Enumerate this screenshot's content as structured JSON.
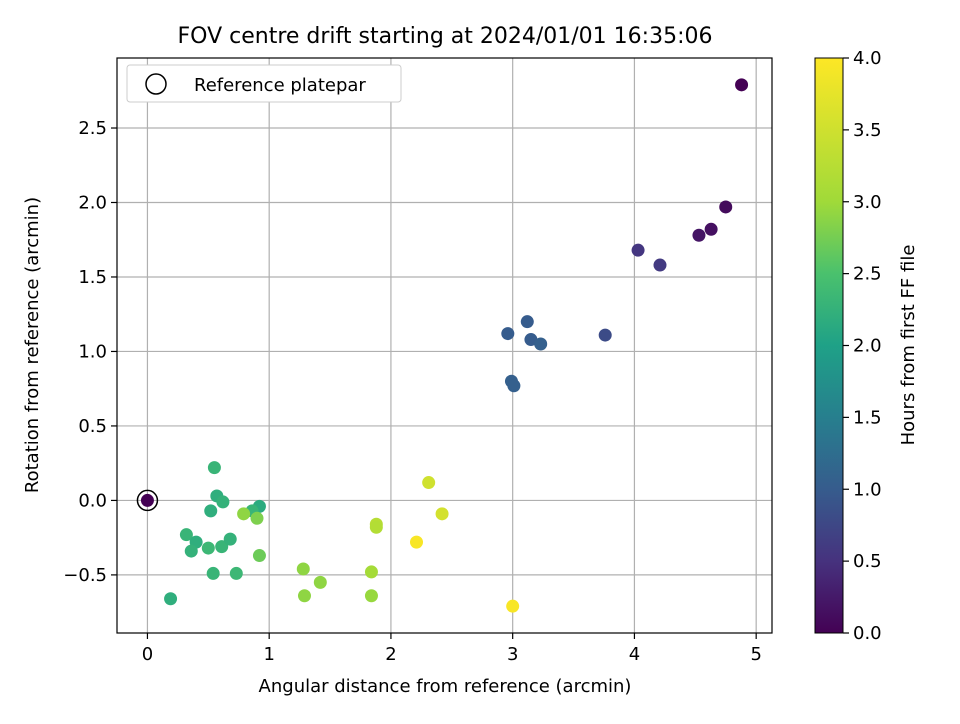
{
  "chart_data": {
    "type": "scatter",
    "title": "FOV centre drift starting at 2024/01/01 16:35:06",
    "xlabel": "Angular distance from reference (arcmin)",
    "ylabel": "Rotation from reference (arcmin)",
    "xlim": [
      -0.25,
      5.13
    ],
    "ylim": [
      -0.89,
      2.97
    ],
    "xticks": [
      0,
      1,
      2,
      3,
      4,
      5
    ],
    "xtick_labels": [
      "0",
      "1",
      "2",
      "3",
      "4",
      "5"
    ],
    "yticks": [
      -0.5,
      0.0,
      0.5,
      1.0,
      1.5,
      2.0,
      2.5
    ],
    "ytick_labels": [
      "−0.5",
      "0.0",
      "0.5",
      "1.0",
      "1.5",
      "2.0",
      "2.5"
    ],
    "grid": true,
    "legend": {
      "placement": "top-left",
      "entries": [
        "Reference platepar"
      ]
    },
    "reference_point": {
      "x": 0,
      "y": 0
    },
    "colorbar": {
      "label": "Hours from first FF file",
      "colormap": "viridis",
      "range": [
        0.0,
        4.0
      ],
      "ticks": [
        0.0,
        0.5,
        1.0,
        1.5,
        2.0,
        2.5,
        3.0,
        3.5,
        4.0
      ],
      "tick_labels": [
        "0.0",
        "0.5",
        "1.0",
        "1.5",
        "2.0",
        "2.5",
        "3.0",
        "3.5",
        "4.0"
      ]
    },
    "points": [
      {
        "x": 4.88,
        "y": 2.79,
        "c": 0.0
      },
      {
        "x": 4.75,
        "y": 1.97,
        "c": 0.1
      },
      {
        "x": 4.63,
        "y": 1.82,
        "c": 0.15
      },
      {
        "x": 4.53,
        "y": 1.78,
        "c": 0.2
      },
      {
        "x": 4.21,
        "y": 1.58,
        "c": 0.6
      },
      {
        "x": 4.03,
        "y": 1.68,
        "c": 0.55
      },
      {
        "x": 3.76,
        "y": 1.11,
        "c": 0.8
      },
      {
        "x": 3.12,
        "y": 1.2,
        "c": 1.0
      },
      {
        "x": 3.15,
        "y": 1.08,
        "c": 1.0
      },
      {
        "x": 3.23,
        "y": 1.05,
        "c": 1.05
      },
      {
        "x": 2.96,
        "y": 1.12,
        "c": 1.0
      },
      {
        "x": 2.99,
        "y": 0.8,
        "c": 1.05
      },
      {
        "x": 3.01,
        "y": 0.77,
        "c": 1.05
      },
      {
        "x": 0.55,
        "y": 0.22,
        "c": 2.3
      },
      {
        "x": 0.57,
        "y": 0.03,
        "c": 2.2
      },
      {
        "x": 0.62,
        "y": -0.01,
        "c": 2.25
      },
      {
        "x": 0.52,
        "y": -0.07,
        "c": 2.2
      },
      {
        "x": 0.92,
        "y": -0.04,
        "c": 2.15
      },
      {
        "x": 0.86,
        "y": -0.07,
        "c": 2.3
      },
      {
        "x": 0.79,
        "y": -0.09,
        "c": 2.9
      },
      {
        "x": 0.9,
        "y": -0.12,
        "c": 2.8
      },
      {
        "x": 0.32,
        "y": -0.23,
        "c": 2.3
      },
      {
        "x": 0.4,
        "y": -0.28,
        "c": 2.2
      },
      {
        "x": 0.36,
        "y": -0.34,
        "c": 2.25
      },
      {
        "x": 0.5,
        "y": -0.32,
        "c": 2.35
      },
      {
        "x": 0.61,
        "y": -0.31,
        "c": 2.3
      },
      {
        "x": 0.68,
        "y": -0.26,
        "c": 2.25
      },
      {
        "x": 0.92,
        "y": -0.37,
        "c": 2.7
      },
      {
        "x": 0.54,
        "y": -0.49,
        "c": 2.3
      },
      {
        "x": 0.73,
        "y": -0.49,
        "c": 2.35
      },
      {
        "x": 0.19,
        "y": -0.66,
        "c": 2.2
      },
      {
        "x": 1.28,
        "y": -0.46,
        "c": 2.9
      },
      {
        "x": 1.42,
        "y": -0.55,
        "c": 2.9
      },
      {
        "x": 1.29,
        "y": -0.64,
        "c": 2.9
      },
      {
        "x": 1.84,
        "y": -0.48,
        "c": 3.05
      },
      {
        "x": 1.84,
        "y": -0.64,
        "c": 2.95
      },
      {
        "x": 1.88,
        "y": -0.16,
        "c": 3.25
      },
      {
        "x": 1.88,
        "y": -0.18,
        "c": 3.2
      },
      {
        "x": 2.31,
        "y": 0.12,
        "c": 3.5
      },
      {
        "x": 2.42,
        "y": -0.09,
        "c": 3.55
      },
      {
        "x": 2.21,
        "y": -0.28,
        "c": 3.95
      },
      {
        "x": 3.0,
        "y": -0.71,
        "c": 3.95
      }
    ]
  }
}
